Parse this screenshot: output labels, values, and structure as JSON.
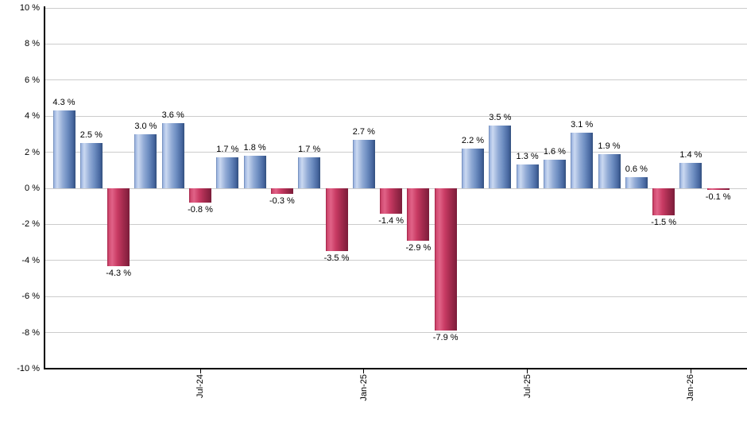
{
  "chart": {
    "background": "#ffffff",
    "grid_color": "#cccccc",
    "axis_color": "#000000",
    "text_color": "#000000"
  },
  "chart_data": {
    "type": "bar",
    "title": "",
    "xlabel": "",
    "ylabel": "",
    "unit": "%",
    "ylim": [
      -10,
      10
    ],
    "y_tick_step": 2,
    "grid": true,
    "legend": false,
    "bars": [
      {
        "value": 4.3,
        "label": "4.3 %"
      },
      {
        "value": 2.5,
        "label": "2.5 %"
      },
      {
        "value": -4.3,
        "label": "-4.3 %"
      },
      {
        "value": 3.0,
        "label": "3.0 %"
      },
      {
        "value": 3.6,
        "label": "3.6 %"
      },
      {
        "value": -0.8,
        "label": "-0.8 %"
      },
      {
        "value": 1.7,
        "label": "1.7 %"
      },
      {
        "value": 1.8,
        "label": "1.8 %"
      },
      {
        "value": -0.3,
        "label": "-0.3 %"
      },
      {
        "value": 1.7,
        "label": "1.7 %"
      },
      {
        "value": -3.5,
        "label": "-3.5 %"
      },
      {
        "value": 2.7,
        "label": "2.7 %"
      },
      {
        "value": -1.4,
        "label": "-1.4 %"
      },
      {
        "value": -2.9,
        "label": "-2.9 %"
      },
      {
        "value": -7.9,
        "label": "-7.9 %"
      },
      {
        "value": 2.2,
        "label": "2.2 %"
      },
      {
        "value": 3.5,
        "label": "3.5 %"
      },
      {
        "value": 1.3,
        "label": "1.3 %"
      },
      {
        "value": 1.6,
        "label": "1.6 %"
      },
      {
        "value": 3.1,
        "label": "3.1 %"
      },
      {
        "value": 1.9,
        "label": "1.9 %"
      },
      {
        "value": 0.6,
        "label": "0.6 %"
      },
      {
        "value": -1.5,
        "label": "-1.5 %"
      },
      {
        "value": 1.4,
        "label": "1.4 %"
      },
      {
        "value": -0.1,
        "label": "-0.1 %"
      }
    ],
    "x_tick_labels": [
      {
        "label": "Jul-24",
        "bar_index": 5
      },
      {
        "label": "Jan-25",
        "bar_index": 11
      },
      {
        "label": "Jul-25",
        "bar_index": 17
      },
      {
        "label": "Jan-26",
        "bar_index": 23
      }
    ],
    "y_tick_labels": [
      {
        "label": "10 %",
        "value": 10
      },
      {
        "label": "8 %",
        "value": 8
      },
      {
        "label": "6 %",
        "value": 6
      },
      {
        "label": "4 %",
        "value": 4
      },
      {
        "label": "2 %",
        "value": 2
      },
      {
        "label": "0 %",
        "value": 0
      },
      {
        "label": "-2 %",
        "value": -2
      },
      {
        "label": "-4 %",
        "value": -4
      },
      {
        "label": "-6 %",
        "value": -6
      },
      {
        "label": "-8 %",
        "value": -8
      },
      {
        "label": "-10 %",
        "value": -10
      }
    ],
    "colors": {
      "positive_bar_base": "#7492c5",
      "positive_bar_highlight": "#cbd9f1",
      "positive_bar_dark": "#33507f",
      "negative_bar_base": "#c93b64",
      "negative_bar_highlight": "#e06287",
      "negative_bar_dark": "#7b1d3a",
      "positive_gradient_stops": [
        [
          "#5b79a8",
          0
        ],
        [
          "#9ab2de",
          4
        ],
        [
          "#cbd9f1",
          18
        ],
        [
          "#93acd6",
          42
        ],
        [
          "#6c8cc0",
          65
        ],
        [
          "#47679f",
          88
        ],
        [
          "#33507f",
          100
        ]
      ],
      "negative_gradient_stops": [
        [
          "#a02146",
          0
        ],
        [
          "#d14a70",
          7
        ],
        [
          "#e06287",
          22
        ],
        [
          "#c93b64",
          45
        ],
        [
          "#a42b4e",
          70
        ],
        [
          "#7b1d3a",
          100
        ]
      ]
    }
  }
}
